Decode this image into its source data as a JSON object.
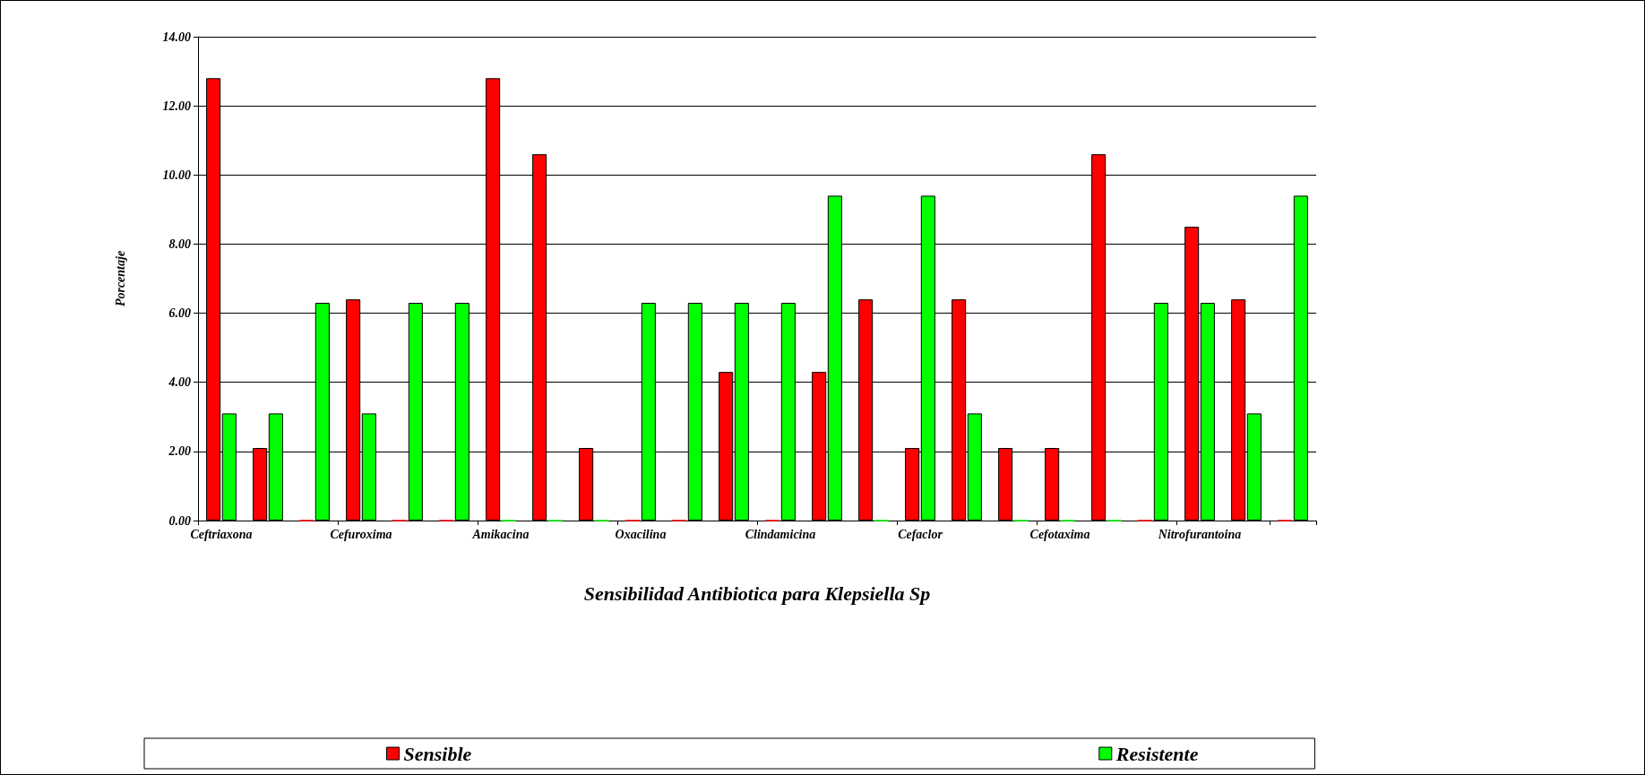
{
  "chart_data": {
    "type": "bar",
    "xlabel": "Sensibilidad Antibiotica para Klepsiella Sp",
    "ylabel": "Porcentaje",
    "categories": [
      "Ceftriaxona",
      null,
      null,
      "Cefuroxima",
      null,
      null,
      "Amikacina",
      null,
      null,
      "Oxacilina",
      null,
      null,
      "Clindamicina",
      null,
      null,
      "Cefaclor",
      null,
      null,
      "Cefotaxima",
      null,
      null,
      "Nitrofurantoina",
      null,
      null
    ],
    "series": [
      {
        "name": "Sensible",
        "color": "#ff0000",
        "values": [
          12.8,
          2.1,
          0,
          6.4,
          0,
          0,
          12.8,
          10.6,
          2.1,
          0,
          0,
          4.3,
          0,
          4.3,
          6.4,
          2.1,
          6.4,
          2.1,
          2.1,
          10.6,
          0,
          8.5,
          6.4,
          0
        ]
      },
      {
        "name": "Resistente",
        "color": "#00ff00",
        "values": [
          3.1,
          3.1,
          6.3,
          3.1,
          6.3,
          6.3,
          0,
          0,
          0,
          6.3,
          6.3,
          6.3,
          6.3,
          9.4,
          0,
          9.4,
          3.1,
          0,
          0,
          0,
          6.3,
          6.3,
          3.1,
          9.4
        ]
      }
    ],
    "ylim": [
      0,
      14
    ],
    "yticks": [
      {
        "value": 0,
        "label": "0.00"
      },
      {
        "value": 2,
        "label": "2.00"
      },
      {
        "value": 4,
        "label": "4.00"
      },
      {
        "value": 6,
        "label": "6.00"
      },
      {
        "value": 8,
        "label": "8.00"
      },
      {
        "value": 10,
        "label": "10.00"
      },
      {
        "value": 12,
        "label": "12.00"
      },
      {
        "value": 14,
        "label": "14.00"
      }
    ],
    "grid": "y",
    "legend": "bottom"
  }
}
